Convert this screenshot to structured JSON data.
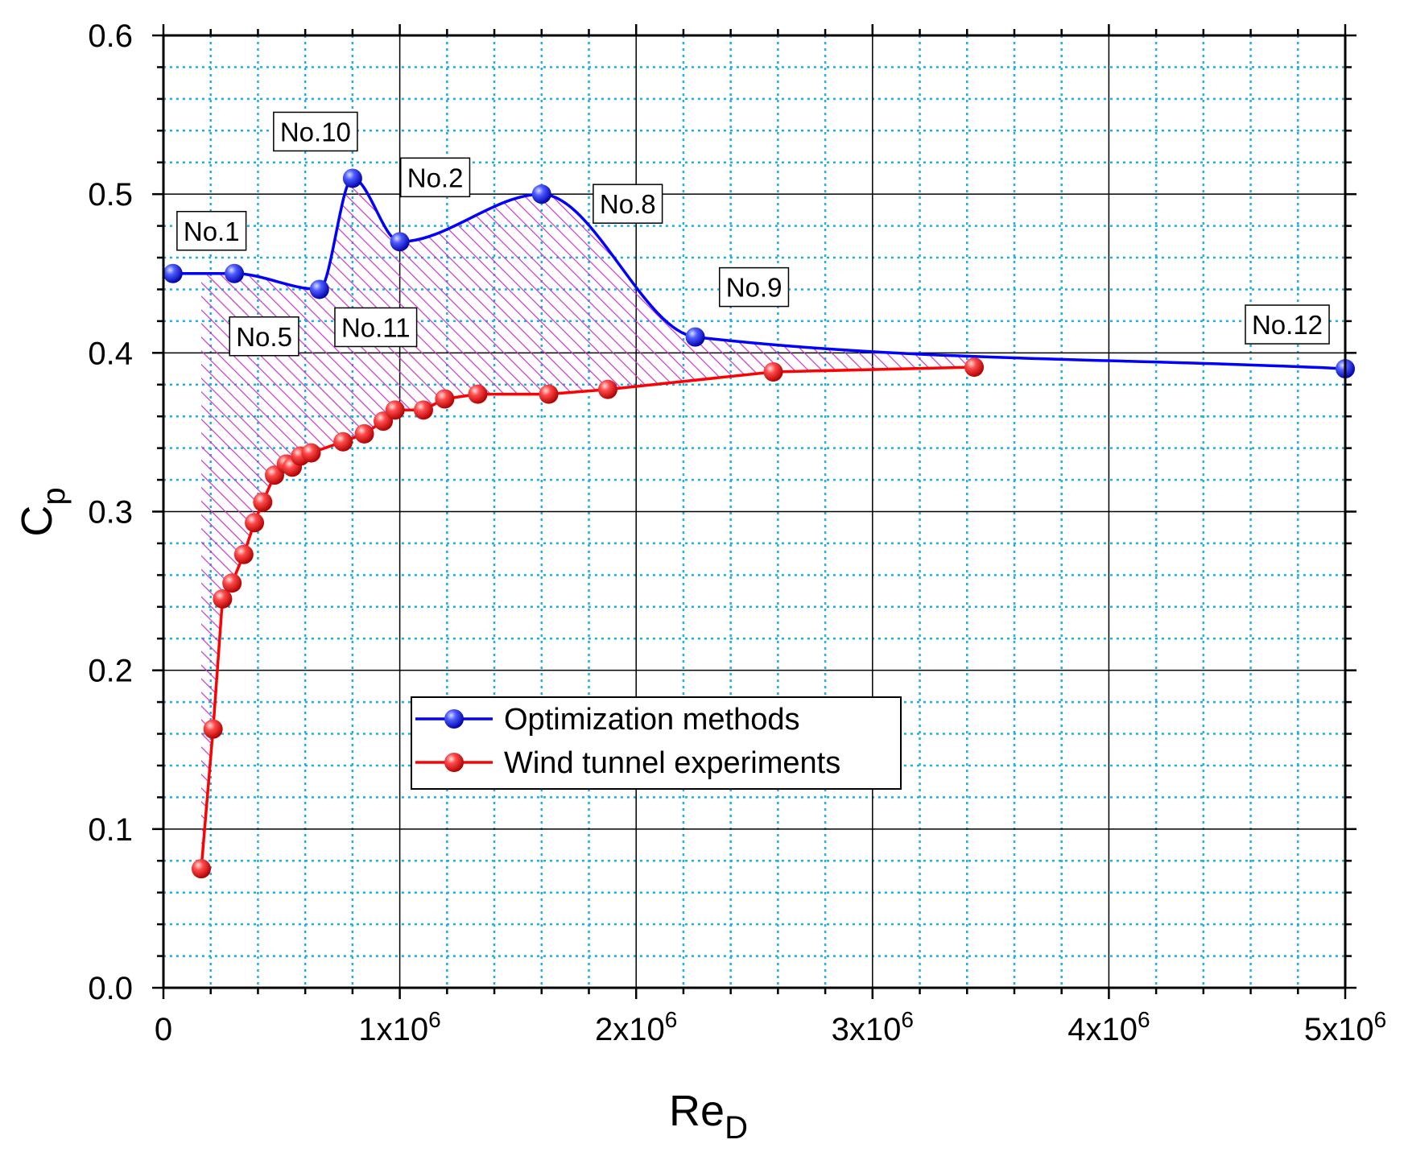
{
  "chart_data": {
    "type": "line",
    "title": "",
    "xlabel": "Re",
    "xlabel_sub": "D",
    "ylabel": "C",
    "ylabel_sub": "p",
    "xlim": [
      0,
      5000000
    ],
    "ylim": [
      0.0,
      0.6
    ],
    "x_ticks": [
      {
        "value": 0,
        "label": "0",
        "exp": ""
      },
      {
        "value": 1000000,
        "label": "1x10",
        "exp": "6"
      },
      {
        "value": 2000000,
        "label": "2x10",
        "exp": "6"
      },
      {
        "value": 3000000,
        "label": "3x10",
        "exp": "6"
      },
      {
        "value": 4000000,
        "label": "4x10",
        "exp": "6"
      },
      {
        "value": 5000000,
        "label": "5x10",
        "exp": "6"
      }
    ],
    "y_ticks": [
      {
        "value": 0.0,
        "label": "0.0"
      },
      {
        "value": 0.1,
        "label": "0.1"
      },
      {
        "value": 0.2,
        "label": "0.2"
      },
      {
        "value": 0.3,
        "label": "0.3"
      },
      {
        "value": 0.4,
        "label": "0.4"
      },
      {
        "value": 0.5,
        "label": "0.5"
      },
      {
        "value": 0.6,
        "label": "0.6"
      }
    ],
    "grid": true,
    "legend_position": "center",
    "series": [
      {
        "name": "Optimization methods",
        "color": "#0000ff",
        "x": [
          40000,
          300000,
          660000,
          800000,
          1000000,
          1600000,
          2250000,
          5000000
        ],
        "y": [
          0.45,
          0.45,
          0.44,
          0.51,
          0.47,
          0.5,
          0.41,
          0.39
        ]
      },
      {
        "name": "Wind tunnel experiments",
        "color": "#ff0000",
        "x": [
          160000,
          210000,
          250000,
          290000,
          340000,
          385000,
          420000,
          470000,
          520000,
          545000,
          580000,
          625000,
          760000,
          850000,
          930000,
          980000,
          1100000,
          1190000,
          1330000,
          1630000,
          1880000,
          2580000,
          3430000
        ],
        "y": [
          0.075,
          0.163,
          0.245,
          0.255,
          0.273,
          0.293,
          0.306,
          0.323,
          0.33,
          0.328,
          0.335,
          0.337,
          0.344,
          0.349,
          0.357,
          0.364,
          0.364,
          0.371,
          0.374,
          0.374,
          0.377,
          0.388,
          0.391
        ]
      }
    ],
    "annotations": [
      {
        "text": "No.1",
        "x": 40000,
        "y": 0.45
      },
      {
        "text": "No.5",
        "x": 300000,
        "y": 0.45
      },
      {
        "text": "No.11",
        "x": 660000,
        "y": 0.44
      },
      {
        "text": "No.10",
        "x": 800000,
        "y": 0.51
      },
      {
        "text": "No.2",
        "x": 1000000,
        "y": 0.47
      },
      {
        "text": "No.8",
        "x": 1600000,
        "y": 0.5
      },
      {
        "text": "No.9",
        "x": 2250000,
        "y": 0.41
      },
      {
        "text": "No.12",
        "x": 5000000,
        "y": 0.39
      }
    ],
    "shaded_region": {
      "description": "hatched magenta area between Optimization methods and Wind tunnel experiments curves",
      "color": "#cc33cc"
    }
  }
}
